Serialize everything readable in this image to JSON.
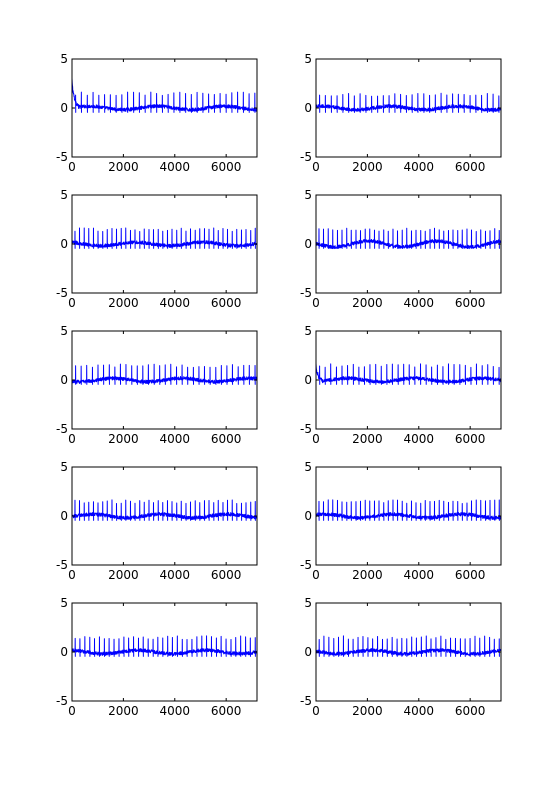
{
  "figure": {
    "background": "#ffffff",
    "line_color": "#0000ff",
    "grid": "off",
    "rows": 5,
    "cols": 2
  },
  "chart_data": [
    {
      "type": "line",
      "panel": "r1c1",
      "xlim": [
        0,
        7200
      ],
      "ylim": [
        -5,
        5
      ],
      "xticks": [
        0,
        2000,
        4000,
        6000
      ],
      "yticks": [
        -5,
        0,
        5
      ],
      "xtick_labels": [
        "0",
        "2000",
        "4000",
        "6000"
      ],
      "ytick_labels": [
        "-5",
        "0",
        "5"
      ],
      "baseline": 0,
      "spike_height": 1.5,
      "n_beats": 32,
      "initial_peak": 3.0,
      "wander": 0.3,
      "series": [
        {
          "color": "#0000ff"
        }
      ]
    },
    {
      "type": "line",
      "panel": "r1c2",
      "xlim": [
        0,
        7200
      ],
      "ylim": [
        -5,
        5
      ],
      "xticks": [
        0,
        2000,
        4000,
        6000
      ],
      "yticks": [
        -5,
        0,
        5
      ],
      "xtick_labels": [
        "0",
        "2000",
        "4000",
        "6000"
      ],
      "ytick_labels": [
        "-5",
        "0",
        "5"
      ],
      "baseline": 0,
      "spike_height": 1.4,
      "n_beats": 32,
      "initial_peak": 0,
      "wander": 0.3,
      "series": [
        {
          "color": "#0000ff"
        }
      ]
    },
    {
      "type": "line",
      "panel": "r2c1",
      "xlim": [
        0,
        7200
      ],
      "ylim": [
        -5,
        5
      ],
      "xticks": [
        0,
        2000,
        4000,
        6000
      ],
      "yticks": [
        -5,
        0,
        5
      ],
      "xtick_labels": [
        "0",
        "2000",
        "4000",
        "6000"
      ],
      "ytick_labels": [
        "-5",
        "0",
        "5"
      ],
      "baseline": 0,
      "spike_height": 1.5,
      "n_beats": 40,
      "initial_peak": 0,
      "wander": 0.3,
      "series": [
        {
          "color": "#0000ff"
        }
      ]
    },
    {
      "type": "line",
      "panel": "r2c2",
      "xlim": [
        0,
        7200
      ],
      "ylim": [
        -5,
        5
      ],
      "xticks": [
        0,
        2000,
        4000,
        6000
      ],
      "yticks": [
        -5,
        0,
        5
      ],
      "xtick_labels": [
        "0",
        "2000",
        "4000",
        "6000"
      ],
      "ytick_labels": [
        "-5",
        "0",
        "5"
      ],
      "baseline": 0,
      "spike_height": 1.5,
      "n_beats": 40,
      "initial_peak": 0,
      "wander": 0.5,
      "series": [
        {
          "color": "#0000ff"
        }
      ]
    },
    {
      "type": "line",
      "panel": "r3c1",
      "xlim": [
        0,
        7200
      ],
      "ylim": [
        -5,
        5
      ],
      "xticks": [
        0,
        2000,
        4000,
        6000
      ],
      "yticks": [
        -5,
        0,
        5
      ],
      "xtick_labels": [
        "0",
        "2000",
        "4000",
        "6000"
      ],
      "ytick_labels": [
        "-5",
        "0",
        "5"
      ],
      "baseline": 0,
      "spike_height": 1.5,
      "n_beats": 33,
      "initial_peak": 0,
      "wander": 0.3,
      "series": [
        {
          "color": "#0000ff"
        }
      ]
    },
    {
      "type": "line",
      "panel": "r3c2",
      "xlim": [
        0,
        7200
      ],
      "ylim": [
        -5,
        5
      ],
      "xticks": [
        0,
        2000,
        4000,
        6000
      ],
      "yticks": [
        -5,
        0,
        5
      ],
      "xtick_labels": [
        "0",
        "2000",
        "4000",
        "6000"
      ],
      "ytick_labels": [
        "-5",
        "0",
        "5"
      ],
      "baseline": 0,
      "spike_height": 1.5,
      "n_beats": 33,
      "initial_peak": 1.8,
      "wander": 0.3,
      "series": [
        {
          "color": "#0000ff"
        }
      ]
    },
    {
      "type": "line",
      "panel": "r4c1",
      "xlim": [
        0,
        7200
      ],
      "ylim": [
        -5,
        5
      ],
      "xticks": [
        0,
        2000,
        4000,
        6000
      ],
      "yticks": [
        -5,
        0,
        5
      ],
      "xtick_labels": [
        "0",
        "2000",
        "4000",
        "6000"
      ],
      "ytick_labels": [
        "-5",
        "0",
        "5"
      ],
      "baseline": 0,
      "spike_height": 1.5,
      "n_beats": 40,
      "initial_peak": 0,
      "wander": 0.3,
      "series": [
        {
          "color": "#0000ff"
        }
      ]
    },
    {
      "type": "line",
      "panel": "r4c2",
      "xlim": [
        0,
        7200
      ],
      "ylim": [
        -5,
        5
      ],
      "xticks": [
        0,
        2000,
        4000,
        6000
      ],
      "yticks": [
        -5,
        0,
        5
      ],
      "xtick_labels": [
        "0",
        "2000",
        "4000",
        "6000"
      ],
      "ytick_labels": [
        "-5",
        "0",
        "5"
      ],
      "baseline": 0,
      "spike_height": 1.5,
      "n_beats": 40,
      "initial_peak": 0,
      "wander": 0.3,
      "series": [
        {
          "color": "#0000ff"
        }
      ]
    },
    {
      "type": "line",
      "panel": "r5c1",
      "xlim": [
        0,
        7200
      ],
      "ylim": [
        -5,
        5
      ],
      "xticks": [
        0,
        2000,
        4000,
        6000
      ],
      "yticks": [
        -5,
        0,
        5
      ],
      "xtick_labels": [
        "0",
        "2000",
        "4000",
        "6000"
      ],
      "ytick_labels": [
        "-5",
        "0",
        "5"
      ],
      "baseline": 0,
      "spike_height": 1.5,
      "n_beats": 38,
      "initial_peak": 0,
      "wander": 0.3,
      "series": [
        {
          "color": "#0000ff"
        }
      ]
    },
    {
      "type": "line",
      "panel": "r5c2",
      "xlim": [
        0,
        7200
      ],
      "ylim": [
        -5,
        5
      ],
      "xticks": [
        0,
        2000,
        4000,
        6000
      ],
      "yticks": [
        -5,
        0,
        5
      ],
      "xtick_labels": [
        "0",
        "2000",
        "4000",
        "6000"
      ],
      "ytick_labels": [
        "-5",
        "0",
        "5"
      ],
      "baseline": 0,
      "spike_height": 1.5,
      "n_beats": 38,
      "initial_peak": 0,
      "wander": 0.3,
      "series": [
        {
          "color": "#0000ff"
        }
      ]
    }
  ]
}
